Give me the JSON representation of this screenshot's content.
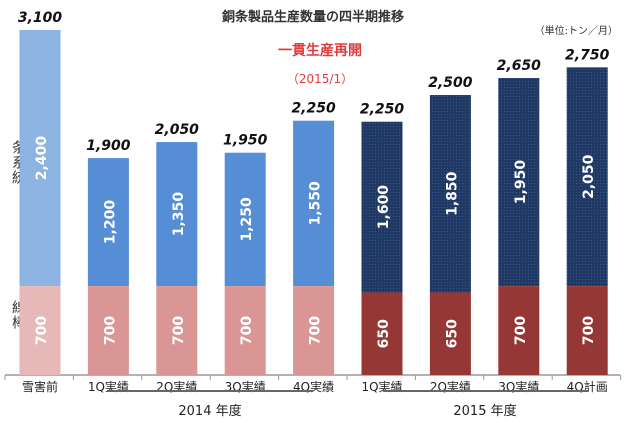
{
  "chart_data": {
    "type": "bar",
    "stacked": true,
    "title": "銅条製品生産数量の四半期推移",
    "unit": "（単位:トン／月）",
    "categories": [
      "雪害前",
      "1Q実績",
      "2Q実績",
      "3Q実績",
      "4Q実績",
      "1Q実績",
      "2Q実績",
      "3Q実績",
      "4Q計画"
    ],
    "groups": [
      {
        "label": "2014 年度",
        "from": 1,
        "to": 4
      },
      {
        "label": "2015 年度",
        "from": 5,
        "to": 8
      }
    ],
    "series": [
      {
        "name": "線棒",
        "values": [
          700,
          700,
          700,
          700,
          700,
          650,
          650,
          700,
          700
        ]
      },
      {
        "name": "条系統",
        "values": [
          2400,
          1200,
          1350,
          1250,
          1550,
          1600,
          1850,
          1950,
          2050
        ]
      }
    ],
    "totals": [
      3100,
      1900,
      2050,
      1950,
      2250,
      2250,
      2500,
      2650,
      2750
    ],
    "total_labels": [
      "3,100",
      "1,900",
      "2,050",
      "1,950",
      "2,250",
      "2,250",
      "2,500",
      "2,650",
      "2,750"
    ],
    "annotation": {
      "line1": "一貫生産再開",
      "line2": "（2015/1）"
    },
    "colors": {
      "bottom": [
        "#e6b9b8",
        "#d99694",
        "#d99694",
        "#d99694",
        "#d99694",
        "#953735",
        "#953735",
        "#953735",
        "#953735"
      ],
      "top": [
        "#8db3e2",
        "#558ed5",
        "#558ed5",
        "#558ed5",
        "#558ed5",
        "#1f3864",
        "#1f3864",
        "#1f3864",
        "#1f3864"
      ]
    }
  }
}
